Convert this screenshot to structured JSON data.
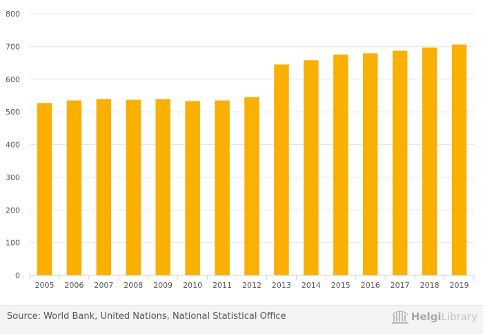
{
  "chart_data": {
    "type": "bar",
    "categories": [
      "2005",
      "2006",
      "2007",
      "2008",
      "2009",
      "2010",
      "2011",
      "2012",
      "2013",
      "2014",
      "2015",
      "2016",
      "2017",
      "2018",
      "2019"
    ],
    "values": [
      527,
      535,
      539,
      537,
      539,
      533,
      535,
      545,
      645,
      658,
      675,
      679,
      687,
      697,
      706
    ],
    "ylim": [
      0,
      800
    ],
    "yticks": [
      0,
      100,
      200,
      300,
      400,
      500,
      600,
      700,
      800
    ],
    "title": "",
    "xlabel": "",
    "ylabel": "",
    "bar_color": "#f9b000",
    "grid": true
  },
  "footer": {
    "source": "Source: World Bank, United Nations, National Statistical Office",
    "logo_text_bold": "Helgi",
    "logo_text_light": "Library"
  }
}
